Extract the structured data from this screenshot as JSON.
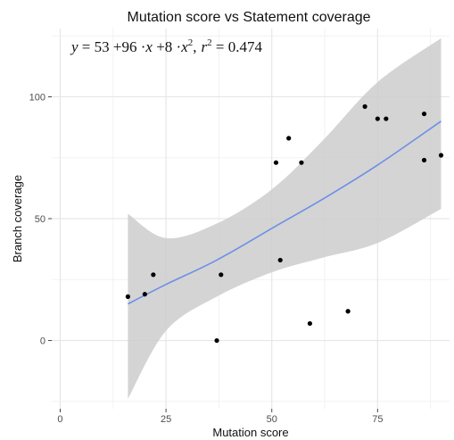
{
  "chart_data": {
    "type": "scatter",
    "title": "Mutation score vs Statement coverage",
    "xlabel": "Mutation score",
    "ylabel": "Branch coverage",
    "xlim": [
      -2,
      92
    ],
    "ylim": [
      -28,
      128
    ],
    "xticks": [
      0,
      25,
      50,
      75
    ],
    "yticks": [
      0,
      50,
      100
    ],
    "grid": true,
    "background": "#ffffff",
    "grid_major_color": "#e6e6e6",
    "grid_minor_color": "#f2f2f2",
    "point_color": "#000000",
    "fit_color": "#6b8fe8",
    "band_color": "#cccccc",
    "annotation": {
      "y": "y",
      "eq": " = 53 +96 ·",
      "x": "x",
      "plus": " +8 ·",
      "x2": "x",
      "sq": "2",
      "comma": ",",
      "r": "r",
      "r_sq": "2",
      "r_val": " = 0.474"
    },
    "points": [
      {
        "x": 16,
        "y": 18
      },
      {
        "x": 20,
        "y": 19
      },
      {
        "x": 22,
        "y": 27
      },
      {
        "x": 37,
        "y": 0
      },
      {
        "x": 38,
        "y": 27
      },
      {
        "x": 51,
        "y": 73
      },
      {
        "x": 52,
        "y": 33
      },
      {
        "x": 54,
        "y": 83
      },
      {
        "x": 57,
        "y": 73
      },
      {
        "x": 59,
        "y": 7
      },
      {
        "x": 68,
        "y": 12
      },
      {
        "x": 72,
        "y": 96
      },
      {
        "x": 75,
        "y": 91
      },
      {
        "x": 77,
        "y": 91
      },
      {
        "x": 86,
        "y": 93
      },
      {
        "x": 86,
        "y": 74
      },
      {
        "x": 90,
        "y": 76
      }
    ],
    "fit": {
      "x": [
        16,
        25,
        37,
        50,
        62,
        75,
        90
      ],
      "y": [
        15,
        23,
        33,
        46,
        58,
        72,
        90
      ],
      "lower": [
        -24,
        4,
        18,
        28,
        34,
        40,
        54
      ],
      "upper": [
        52,
        42,
        48,
        62,
        82,
        106,
        124
      ]
    }
  }
}
